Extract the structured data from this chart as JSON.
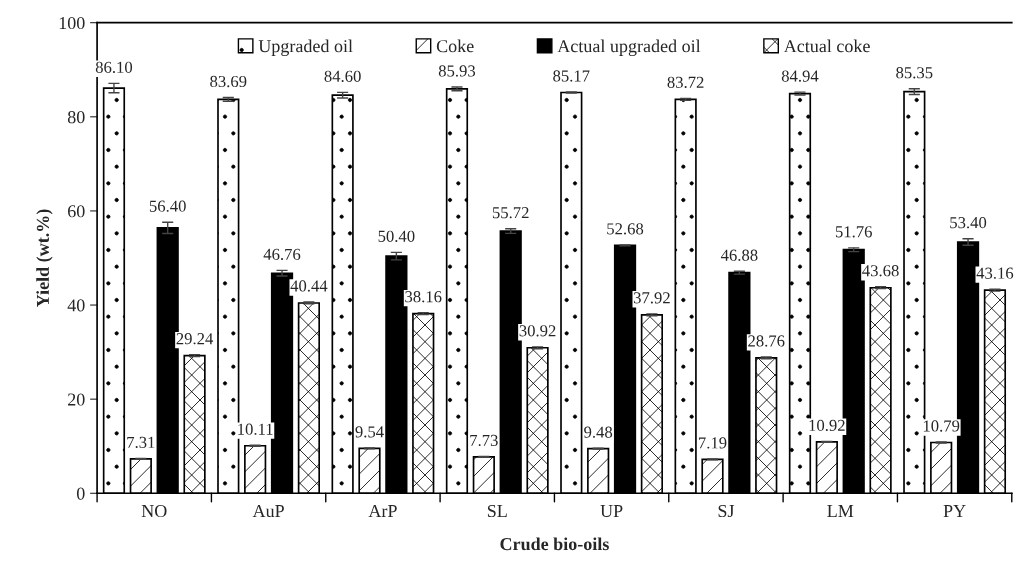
{
  "chart_data": {
    "type": "bar",
    "xlabel": "Crude bio-oils",
    "ylabel": "Yield (wt.%)",
    "categories": [
      "NO",
      "AuP",
      "ArP",
      "SL",
      "UP",
      "SJ",
      "LM",
      "PY"
    ],
    "ylim": [
      0,
      100
    ],
    "yticks": [
      0,
      20,
      40,
      60,
      80,
      100
    ],
    "grid": false,
    "legend": "top",
    "series": [
      {
        "name": "Upgraded oil",
        "color": "#ffffff",
        "values": [
          86.1,
          83.69,
          84.6,
          85.93,
          85.17,
          83.72,
          84.94,
          85.35
        ],
        "errors": [
          1.0,
          0.4,
          0.6,
          0.4,
          0.1,
          0.2,
          0.3,
          0.6
        ],
        "value_labels": [
          "86.10",
          "83.69",
          "84.60",
          "85.93",
          "85.17",
          "83.72",
          "84.94",
          "85.35"
        ]
      },
      {
        "name": "Coke",
        "color": "#ffffff",
        "values": [
          7.31,
          10.11,
          9.54,
          7.73,
          9.48,
          7.19,
          10.92,
          10.79
        ],
        "errors": [
          0.1,
          0.1,
          0.1,
          0.1,
          0.1,
          0.1,
          0.1,
          0.1
        ],
        "value_labels": [
          "7.31",
          "10.11",
          "9.54",
          "7.73",
          "9.48",
          "7.19",
          "10.92",
          "10.79"
        ]
      },
      {
        "name": "Actual upgraded oil",
        "color": "#000000",
        "values": [
          56.4,
          46.76,
          50.4,
          55.72,
          52.68,
          46.88,
          51.76,
          53.4
        ],
        "errors": [
          1.2,
          0.6,
          0.8,
          0.5,
          0.1,
          0.3,
          0.4,
          0.7
        ],
        "value_labels": [
          "56.40",
          "46.76",
          "50.40",
          "55.72",
          "52.68",
          "46.88",
          "51.76",
          "53.40"
        ]
      },
      {
        "name": "Actual coke",
        "color": "#ffffff",
        "values": [
          29.24,
          40.44,
          38.16,
          30.92,
          37.92,
          28.76,
          43.68,
          43.16
        ],
        "errors": [
          0.2,
          0.2,
          0.2,
          0.2,
          0.2,
          0.2,
          0.2,
          0.2
        ],
        "value_labels": [
          "29.24",
          "40.44",
          "38.16",
          "30.92",
          "37.92",
          "28.76",
          "43.68",
          "43.16"
        ]
      }
    ]
  }
}
